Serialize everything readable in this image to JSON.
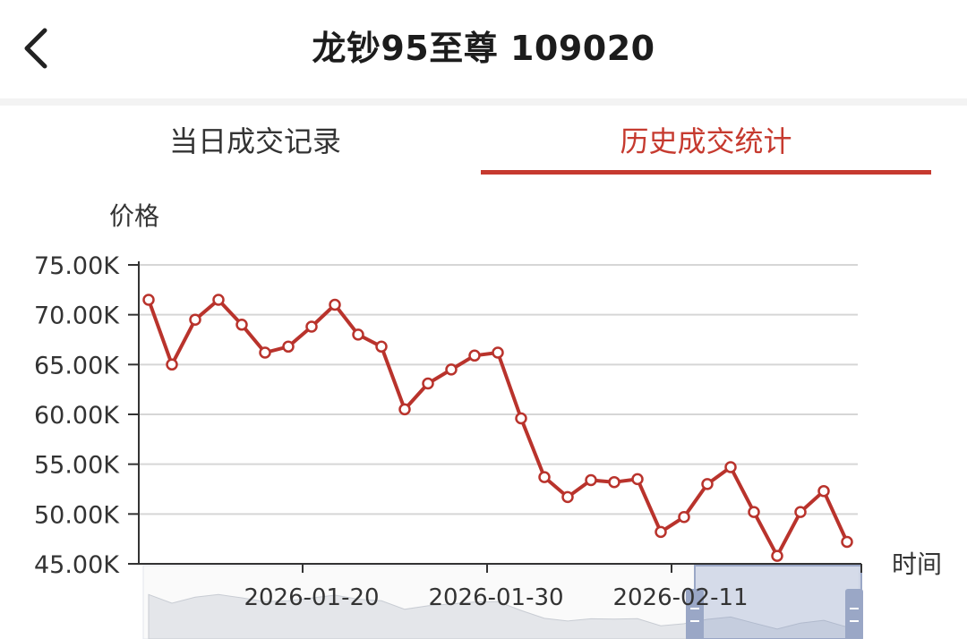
{
  "header": {
    "title": "龙钞95至尊 109020",
    "back_icon": "chevron-left-icon"
  },
  "tabs": [
    {
      "label": "当日成交记录",
      "active": false
    },
    {
      "label": "历史成交统计",
      "active": true
    }
  ],
  "colors": {
    "accent": "#c63a2f",
    "line": "#b9332c",
    "grid": "#d6d6d6",
    "axis": "#333333",
    "slider": "#9aa7c6"
  },
  "chart_data": {
    "type": "line",
    "ylabel": "价格",
    "xlabel": "时间",
    "ylim": [
      45000,
      75000
    ],
    "ytick_labels": [
      "75.00K",
      "70.00K",
      "65.00K",
      "60.00K",
      "55.00K",
      "50.00K",
      "45.00K"
    ],
    "xtick_labels": [
      "2026-01-20",
      "2026-01-30",
      "2026-02-11"
    ],
    "grid": true,
    "series": [
      {
        "values": [
          71500,
          65000,
          69500,
          71500,
          69000,
          66200,
          66800,
          68800,
          71000,
          68000,
          66800,
          60500,
          63100,
          64500,
          65900,
          66200,
          59600,
          53700,
          51700,
          53400,
          53200,
          53500,
          48200,
          49700,
          53000,
          54700,
          50200,
          45800,
          50200,
          52300,
          47200
        ]
      }
    ]
  }
}
